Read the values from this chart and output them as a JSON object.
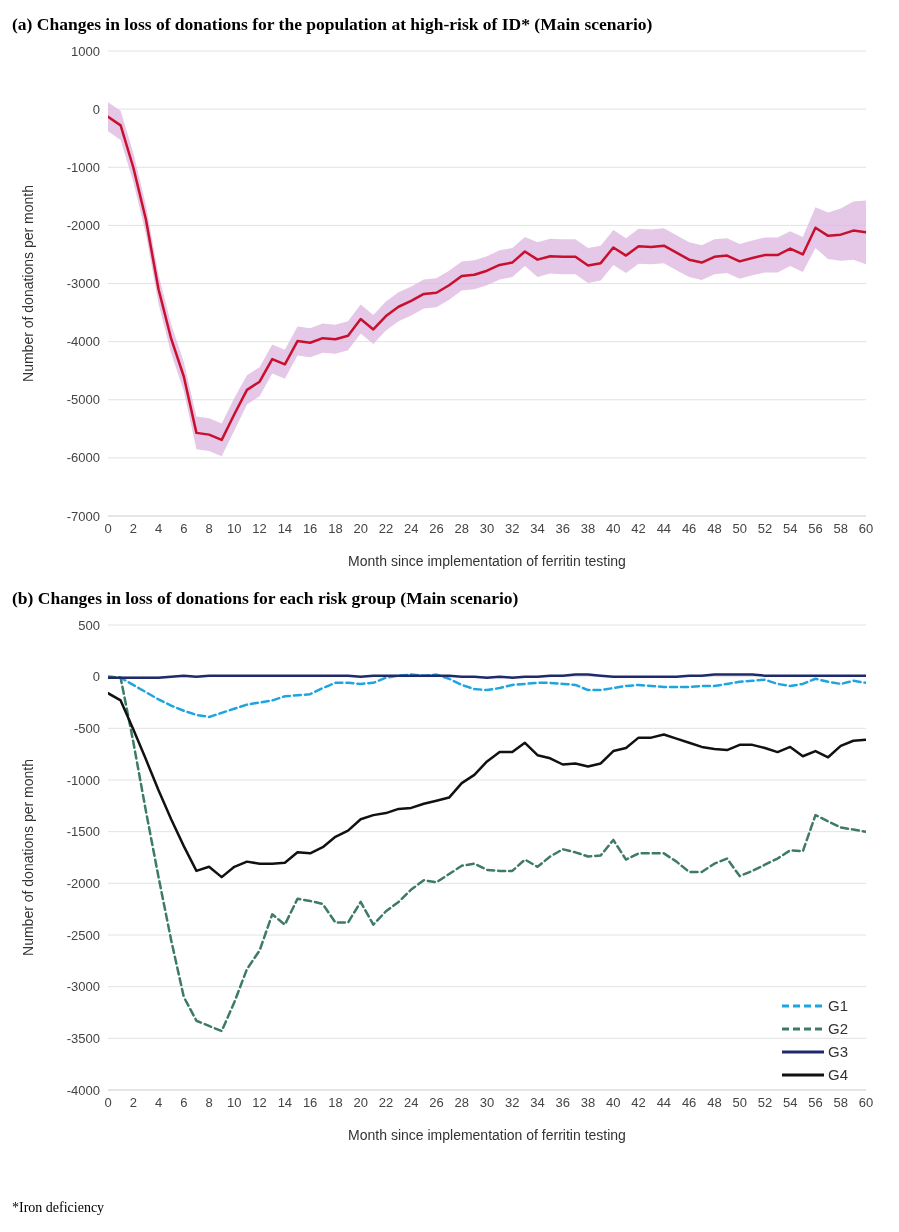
{
  "chart_data": [
    {
      "type": "line",
      "title": "(a) Changes in loss of donations for the population at high-risk of ID* (Main scenario)",
      "xlabel": "Month since implementation of ferritin testing",
      "ylabel": "Number of donations per month",
      "x": [
        0,
        1,
        2,
        3,
        4,
        5,
        6,
        7,
        8,
        9,
        10,
        11,
        12,
        13,
        14,
        15,
        16,
        17,
        18,
        19,
        20,
        21,
        22,
        23,
        24,
        25,
        26,
        27,
        28,
        29,
        30,
        31,
        32,
        33,
        34,
        35,
        36,
        37,
        38,
        39,
        40,
        41,
        42,
        43,
        44,
        45,
        46,
        47,
        48,
        49,
        50,
        51,
        52,
        53,
        54,
        55,
        56,
        57,
        58,
        59,
        60
      ],
      "series": [
        {
          "color": "#c8102e",
          "values": [
            -130,
            -280,
            -1000,
            -1900,
            -3100,
            -3950,
            -4600,
            -5570,
            -5600,
            -5690,
            -5250,
            -4830,
            -4690,
            -4300,
            -4390,
            -3990,
            -4020,
            -3940,
            -3960,
            -3900,
            -3610,
            -3790,
            -3560,
            -3400,
            -3300,
            -3180,
            -3160,
            -3030,
            -2870,
            -2850,
            -2780,
            -2680,
            -2640,
            -2450,
            -2590,
            -2530,
            -2540,
            -2540,
            -2690,
            -2650,
            -2380,
            -2520,
            -2360,
            -2370,
            -2350,
            -2470,
            -2590,
            -2640,
            -2540,
            -2520,
            -2620,
            -2560,
            -2510,
            -2510,
            -2400,
            -2500,
            -2040,
            -2180,
            -2160,
            -2090,
            -2120
          ],
          "upper": [
            120,
            -30,
            -750,
            -1650,
            -2850,
            -3700,
            -4350,
            -5290,
            -5320,
            -5410,
            -4970,
            -4580,
            -4440,
            -4050,
            -4140,
            -3740,
            -3770,
            -3690,
            -3710,
            -3650,
            -3360,
            -3540,
            -3310,
            -3150,
            -3050,
            -2930,
            -2910,
            -2780,
            -2620,
            -2600,
            -2530,
            -2430,
            -2390,
            -2200,
            -2290,
            -2230,
            -2240,
            -2240,
            -2390,
            -2350,
            -2080,
            -2220,
            -2060,
            -2070,
            -2050,
            -2170,
            -2290,
            -2340,
            -2240,
            -2220,
            -2320,
            -2260,
            -2210,
            -2210,
            -2100,
            -2200,
            -1690,
            -1780,
            -1710,
            -1590,
            -1570
          ],
          "lower": [
            -380,
            -530,
            -1250,
            -2150,
            -3350,
            -4200,
            -4850,
            -5850,
            -5880,
            -5970,
            -5530,
            -5080,
            -4940,
            -4550,
            -4640,
            -4240,
            -4270,
            -4190,
            -4210,
            -4150,
            -3860,
            -4040,
            -3810,
            -3650,
            -3550,
            -3430,
            -3410,
            -3280,
            -3120,
            -3100,
            -3030,
            -2930,
            -2890,
            -2700,
            -2890,
            -2830,
            -2840,
            -2840,
            -2990,
            -2950,
            -2680,
            -2820,
            -2660,
            -2670,
            -2650,
            -2770,
            -2890,
            -2940,
            -2840,
            -2820,
            -2920,
            -2860,
            -2810,
            -2810,
            -2700,
            -2800,
            -2390,
            -2580,
            -2610,
            -2590,
            -2670
          ]
        }
      ],
      "xlim": [
        0,
        60
      ],
      "xticks": [
        0,
        2,
        4,
        6,
        8,
        10,
        12,
        14,
        16,
        18,
        20,
        22,
        24,
        26,
        28,
        30,
        32,
        34,
        36,
        38,
        40,
        42,
        44,
        46,
        48,
        50,
        52,
        54,
        56,
        58,
        60
      ],
      "ylim": [
        -7000,
        1000
      ],
      "yticks": [
        -7000,
        -6000,
        -5000,
        -4000,
        -3000,
        -2000,
        -1000,
        0,
        1000
      ],
      "grid": "y",
      "line_style": "solid"
    },
    {
      "type": "line",
      "title": "(b) Changes in loss of donations for each risk group (Main scenario)",
      "xlabel": "Month since implementation of ferritin testing",
      "ylabel": "Number of donations per month",
      "x": [
        0,
        1,
        2,
        3,
        4,
        5,
        6,
        7,
        8,
        9,
        10,
        11,
        12,
        13,
        14,
        15,
        16,
        17,
        18,
        19,
        20,
        21,
        22,
        23,
        24,
        25,
        26,
        27,
        28,
        29,
        30,
        31,
        32,
        33,
        34,
        35,
        36,
        37,
        38,
        39,
        40,
        41,
        42,
        43,
        44,
        45,
        46,
        47,
        48,
        49,
        50,
        51,
        52,
        53,
        54,
        55,
        56,
        57,
        58,
        59,
        60
      ],
      "series": [
        {
          "name": "G1",
          "color": "#1ea5e0",
          "line_style": "dashed",
          "values": [
            0,
            -10,
            -80,
            -150,
            -220,
            -280,
            -330,
            -370,
            -390,
            -350,
            -310,
            -270,
            -250,
            -230,
            -190,
            -180,
            -170,
            -110,
            -60,
            -60,
            -70,
            -60,
            -10,
            10,
            20,
            10,
            20,
            -20,
            -80,
            -120,
            -130,
            -110,
            -80,
            -70,
            -60,
            -60,
            -70,
            -80,
            -130,
            -130,
            -110,
            -90,
            -80,
            -90,
            -100,
            -100,
            -100,
            -90,
            -90,
            -70,
            -50,
            -40,
            -30,
            -70,
            -90,
            -70,
            -20,
            -50,
            -70,
            -40,
            -60
          ]
        },
        {
          "name": "G2",
          "color": "#3d7a6a",
          "line_style": "dashed",
          "values": [
            0,
            -10,
            -630,
            -1300,
            -1940,
            -2550,
            -3100,
            -3330,
            -3380,
            -3430,
            -3150,
            -2830,
            -2650,
            -2300,
            -2400,
            -2150,
            -2170,
            -2200,
            -2380,
            -2380,
            -2180,
            -2400,
            -2270,
            -2180,
            -2060,
            -1970,
            -1990,
            -1910,
            -1830,
            -1810,
            -1870,
            -1880,
            -1880,
            -1770,
            -1840,
            -1740,
            -1670,
            -1700,
            -1740,
            -1730,
            -1580,
            -1770,
            -1710,
            -1710,
            -1710,
            -1790,
            -1890,
            -1890,
            -1810,
            -1760,
            -1930,
            -1880,
            -1820,
            -1760,
            -1680,
            -1690,
            -1340,
            -1400,
            -1460,
            -1480,
            -1500
          ]
        },
        {
          "name": "G3",
          "color": "#1f2a6b",
          "line_style": "solid",
          "values": [
            -10,
            -10,
            -10,
            -10,
            -10,
            0,
            10,
            0,
            10,
            10,
            10,
            10,
            10,
            10,
            10,
            10,
            10,
            10,
            10,
            10,
            0,
            10,
            10,
            10,
            10,
            10,
            10,
            10,
            0,
            0,
            -10,
            0,
            -10,
            0,
            0,
            10,
            10,
            20,
            20,
            10,
            0,
            0,
            0,
            0,
            0,
            0,
            10,
            10,
            20,
            20,
            20,
            20,
            10,
            10,
            10,
            10,
            10,
            10,
            10,
            10,
            10
          ]
        },
        {
          "name": "G4",
          "color": "#111111",
          "line_style": "solid",
          "values": [
            -160,
            -230,
            -510,
            -800,
            -1100,
            -1380,
            -1640,
            -1880,
            -1840,
            -1940,
            -1840,
            -1790,
            -1810,
            -1810,
            -1800,
            -1700,
            -1710,
            -1650,
            -1550,
            -1490,
            -1380,
            -1340,
            -1320,
            -1280,
            -1270,
            -1230,
            -1200,
            -1170,
            -1030,
            -950,
            -820,
            -730,
            -730,
            -640,
            -760,
            -790,
            -850,
            -840,
            -870,
            -840,
            -720,
            -690,
            -590,
            -590,
            -560,
            -600,
            -640,
            -680,
            -700,
            -710,
            -660,
            -660,
            -690,
            -730,
            -680,
            -770,
            -720,
            -780,
            -670,
            -620,
            -610
          ]
        }
      ],
      "xlim": [
        0,
        60
      ],
      "xticks": [
        0,
        2,
        4,
        6,
        8,
        10,
        12,
        14,
        16,
        18,
        20,
        22,
        24,
        26,
        28,
        30,
        32,
        34,
        36,
        38,
        40,
        42,
        44,
        46,
        48,
        50,
        52,
        54,
        56,
        58,
        60
      ],
      "ylim": [
        -4000,
        500
      ],
      "yticks": [
        -4000,
        -3500,
        -3000,
        -2500,
        -2000,
        -1500,
        -1000,
        -500,
        0,
        500
      ],
      "grid": "y",
      "legend": "bottom right",
      "annotations": [
        "*Iron deficiency"
      ]
    }
  ]
}
